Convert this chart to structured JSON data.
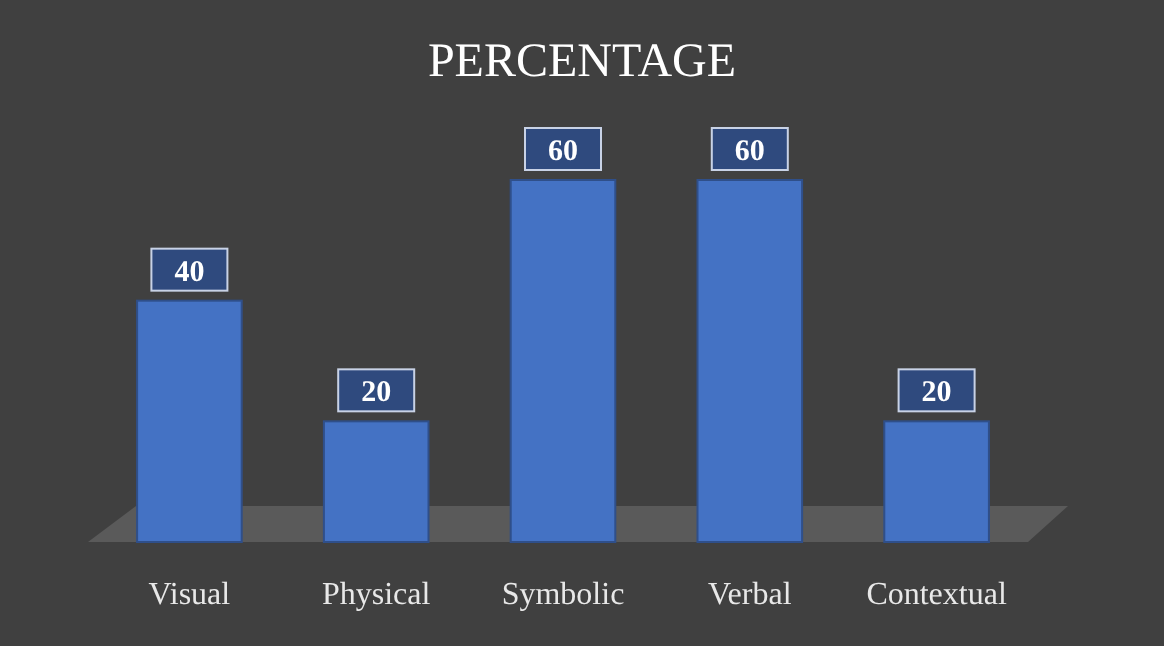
{
  "chart_data": {
    "type": "bar",
    "title": "PERCENTAGE",
    "categories": [
      "Visual",
      "Physical",
      "Symbolic",
      "Verbal",
      "Contextual"
    ],
    "values": [
      40,
      20,
      60,
      60,
      20
    ],
    "color": "#4472c4",
    "data_labels": true
  }
}
